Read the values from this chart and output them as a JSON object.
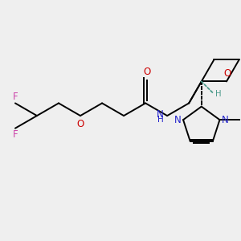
{
  "background_color": "#efefef",
  "figsize": [
    3.0,
    3.0
  ],
  "dpi": 100,
  "bond_lw": 1.4,
  "font_size": 8.5,
  "colors": {
    "C": "black",
    "N": "#2222cc",
    "O": "#cc0000",
    "F": "#cc44aa",
    "H_stereo": "#4a9a8a"
  }
}
